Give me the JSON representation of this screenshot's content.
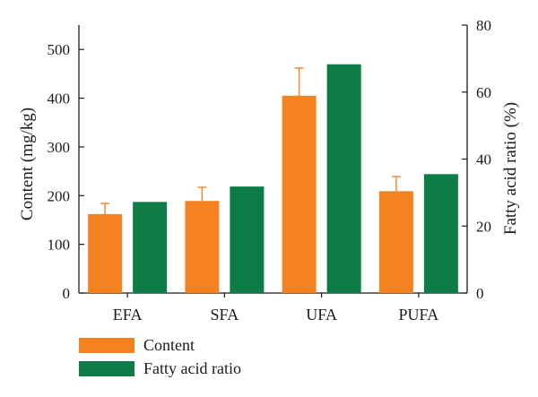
{
  "chart_data": {
    "type": "bar",
    "categories": [
      "EFA",
      "SFA",
      "UFA",
      "PUFA"
    ],
    "series": [
      {
        "name": "Content",
        "axis": "left",
        "color": "#f58220",
        "values": [
          162,
          189,
          405,
          209
        ],
        "error": [
          22,
          28,
          57,
          30
        ]
      },
      {
        "name": "Fatty acid ratio",
        "axis": "right",
        "color": "#0e7c45",
        "values": [
          27.2,
          31.8,
          68.3,
          35.5
        ]
      }
    ],
    "ylabel": "Content (mg/kg)",
    "ylabel_right": "Fatty acid ratio (%)",
    "ylim": [
      0,
      550
    ],
    "ylim_right": [
      0,
      80
    ],
    "yticks": [
      0,
      100,
      200,
      300,
      400,
      500
    ],
    "yticks_right": [
      0,
      20,
      40,
      60,
      80
    ],
    "legend_position": "bottom-left",
    "grid": false
  }
}
